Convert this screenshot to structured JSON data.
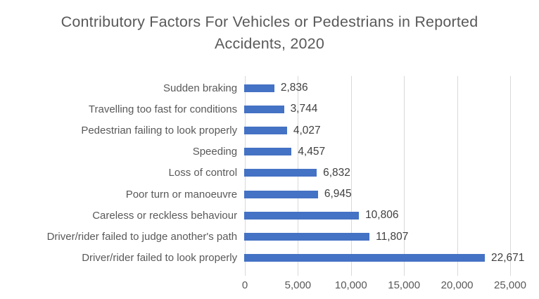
{
  "chart_data": {
    "type": "bar",
    "orientation": "horizontal",
    "title": "Contributory Factors For Vehicles or Pedestrians in Reported Accidents, 2020",
    "categories": [
      "Sudden braking",
      "Travelling too fast for conditions",
      "Pedestrian failing to look properly",
      "Speeding",
      "Loss of control",
      "Poor turn or manoeuvre",
      "Careless or reckless behaviour",
      "Driver/rider failed to judge another's path",
      "Driver/rider failed to look properly"
    ],
    "values": [
      2836,
      3744,
      4027,
      4457,
      6832,
      6945,
      10806,
      11807,
      22671
    ],
    "value_labels": [
      "2,836",
      "3,744",
      "4,027",
      "4,457",
      "6,832",
      "6,945",
      "10,806",
      "11,807",
      "22,671"
    ],
    "xlabel": "",
    "ylabel": "",
    "xlim": [
      0,
      25000
    ],
    "xticks": [
      0,
      5000,
      10000,
      15000,
      20000,
      25000
    ],
    "xtick_labels": [
      "0",
      "5,000",
      "10,000",
      "15,000",
      "20,000",
      "25,000"
    ],
    "grid": "vertical-only",
    "legend": "none",
    "data_labels": "outside-end",
    "colors": {
      "bar": "#4472C4",
      "title": "#595959",
      "category_label": "#595959",
      "value_label": "#404040",
      "tick_label": "#595959",
      "gridline": "#d9d9d9",
      "background": "#ffffff"
    }
  }
}
